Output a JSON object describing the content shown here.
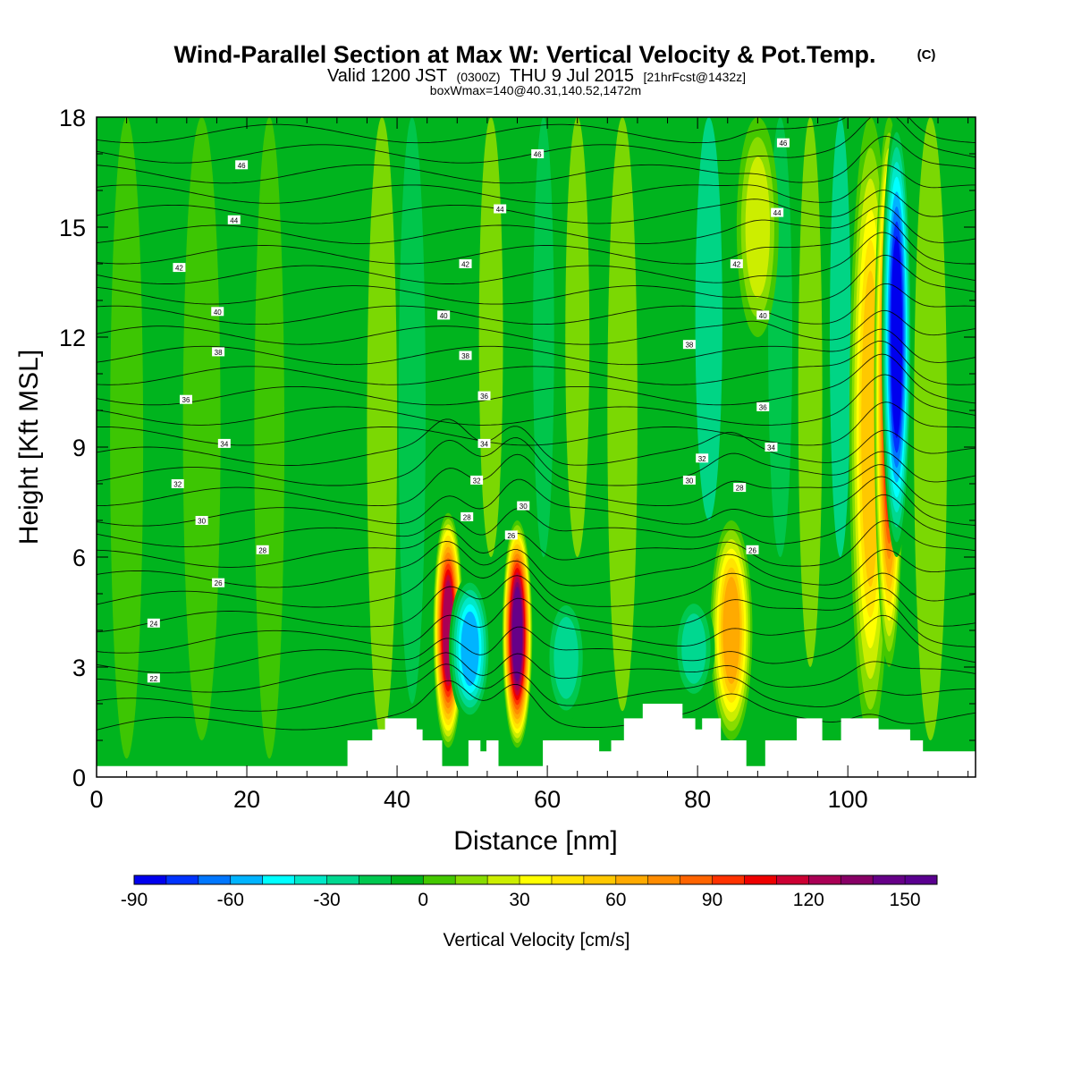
{
  "header": {
    "title": "Wind-Parallel Section at Max W: Vertical Velocity & Pot.Temp.",
    "copyright": "(C)",
    "valid_prefix": "Valid 1200 JST",
    "valid_utc": "(0300Z)",
    "valid_date": "THU 9 Jul 2015",
    "forecast": "[21hrFcst@1432z]",
    "box_info": "boxWmax=140@40.31,140.52,1472m"
  },
  "chart_data": {
    "type": "heatmap",
    "xlabel": "Distance [nm]",
    "ylabel": "Height [Kft MSL]",
    "xlim": [
      0,
      117
    ],
    "ylim": [
      0,
      18
    ],
    "xticks": [
      "0",
      "20",
      "40",
      "60",
      "80",
      "100"
    ],
    "xtick_values": [
      0,
      20,
      40,
      60,
      80,
      100
    ],
    "yticks": [
      "0",
      "3",
      "6",
      "9",
      "12",
      "15",
      "18"
    ],
    "ytick_values": [
      0,
      3,
      6,
      9,
      12,
      15,
      18
    ],
    "colorbar": {
      "label": "Vertical Velocity [cm/s]",
      "min": -90,
      "max": 160,
      "step": 10,
      "tick_labels": [
        "-90",
        "-60",
        "-30",
        "0",
        "30",
        "60",
        "90",
        "120",
        "150"
      ],
      "tick_values": [
        -90,
        -60,
        -30,
        0,
        30,
        60,
        90,
        120,
        150
      ],
      "colors": [
        "#0000ee",
        "#0033ff",
        "#0077ff",
        "#00b4ff",
        "#00ffff",
        "#00e8c8",
        "#00d890",
        "#00c850",
        "#00b41e",
        "#44c800",
        "#88dc00",
        "#ccee00",
        "#ffff00",
        "#ffe400",
        "#ffc800",
        "#ffaa00",
        "#ff8c00",
        "#ff6400",
        "#ff3200",
        "#ee0000",
        "#cc0033",
        "#aa0055",
        "#880066",
        "#660088",
        "#5a0090"
      ]
    },
    "updrafts": [
      {
        "x": 46.8,
        "z_bottom": 0.8,
        "z_top": 7.2,
        "peak_w": 130
      },
      {
        "x": 56.0,
        "z_bottom": 0.8,
        "z_top": 7.0,
        "peak_w": 150
      },
      {
        "x": 84.5,
        "z_bottom": 1.0,
        "z_top": 7.0,
        "peak_w": 70
      },
      {
        "x": 103.0,
        "z_bottom": 1.0,
        "z_top": 18.0,
        "peak_w": 60
      },
      {
        "x": 105.5,
        "z_bottom": 3.0,
        "z_top": 18.0,
        "peak_w": 110
      },
      {
        "x": 88.0,
        "z_bottom": 12.0,
        "z_top": 18.0,
        "peak_w": 30
      }
    ],
    "downdrafts": [
      {
        "x": 49.7,
        "z_bottom": 1.5,
        "z_top": 5.5,
        "peak_w": -60
      },
      {
        "x": 106.5,
        "z_bottom": 6.0,
        "z_top": 18.0,
        "peak_w": -90
      },
      {
        "x": 62.5,
        "z_bottom": 1.5,
        "z_top": 5.0,
        "peak_w": -30
      },
      {
        "x": 79.5,
        "z_bottom": 2.0,
        "z_top": 5.0,
        "peak_w": -30
      }
    ],
    "terrain_kft": [
      {
        "x": 0,
        "z": 0.3
      },
      {
        "x": 33.4,
        "z": 0.3
      },
      {
        "x": 33.4,
        "z": 1.0
      },
      {
        "x": 36.7,
        "z": 1.0
      },
      {
        "x": 36.7,
        "z": 1.3
      },
      {
        "x": 38.4,
        "z": 1.3
      },
      {
        "x": 38.4,
        "z": 1.6
      },
      {
        "x": 42.6,
        "z": 1.6
      },
      {
        "x": 42.6,
        "z": 1.3
      },
      {
        "x": 43.4,
        "z": 1.3
      },
      {
        "x": 43.4,
        "z": 1.0
      },
      {
        "x": 46.0,
        "z": 1.0
      },
      {
        "x": 46.0,
        "z": 0.3
      },
      {
        "x": 49.5,
        "z": 0.3
      },
      {
        "x": 49.5,
        "z": 1.0
      },
      {
        "x": 51.1,
        "z": 1.0
      },
      {
        "x": 51.1,
        "z": 0.7
      },
      {
        "x": 51.9,
        "z": 0.7
      },
      {
        "x": 51.9,
        "z": 1.0
      },
      {
        "x": 53.5,
        "z": 1.0
      },
      {
        "x": 53.5,
        "z": 0.3
      },
      {
        "x": 59.4,
        "z": 0.3
      },
      {
        "x": 59.4,
        "z": 1.0
      },
      {
        "x": 66.9,
        "z": 1.0
      },
      {
        "x": 66.9,
        "z": 0.7
      },
      {
        "x": 68.5,
        "z": 0.7
      },
      {
        "x": 68.5,
        "z": 1.0
      },
      {
        "x": 70.2,
        "z": 1.0
      },
      {
        "x": 70.2,
        "z": 1.6
      },
      {
        "x": 72.7,
        "z": 1.6
      },
      {
        "x": 72.7,
        "z": 2.0
      },
      {
        "x": 78.0,
        "z": 2.0
      },
      {
        "x": 78.0,
        "z": 1.6
      },
      {
        "x": 79.7,
        "z": 1.6
      },
      {
        "x": 79.7,
        "z": 1.3
      },
      {
        "x": 80.6,
        "z": 1.3
      },
      {
        "x": 80.6,
        "z": 1.6
      },
      {
        "x": 83.1,
        "z": 1.6
      },
      {
        "x": 83.1,
        "z": 1.0
      },
      {
        "x": 86.5,
        "z": 1.0
      },
      {
        "x": 86.5,
        "z": 0.3
      },
      {
        "x": 89.0,
        "z": 0.3
      },
      {
        "x": 89.0,
        "z": 1.0
      },
      {
        "x": 93.2,
        "z": 1.0
      },
      {
        "x": 93.2,
        "z": 1.6
      },
      {
        "x": 96.6,
        "z": 1.6
      },
      {
        "x": 96.6,
        "z": 1.0
      },
      {
        "x": 99.1,
        "z": 1.0
      },
      {
        "x": 99.1,
        "z": 1.6
      },
      {
        "x": 104.1,
        "z": 1.6
      },
      {
        "x": 104.1,
        "z": 1.3
      },
      {
        "x": 108.3,
        "z": 1.3
      },
      {
        "x": 108.3,
        "z": 1.0
      },
      {
        "x": 110.0,
        "z": 1.0
      },
      {
        "x": 110.0,
        "z": 0.7
      },
      {
        "x": 117,
        "z": 0.7
      }
    ],
    "isentrope_labels": [
      {
        "text": "46",
        "x": 19.3,
        "z": 16.7
      },
      {
        "text": "46",
        "x": 58.7,
        "z": 17.0
      },
      {
        "text": "46",
        "x": 91.4,
        "z": 17.3
      },
      {
        "text": "44",
        "x": 18.3,
        "z": 15.2
      },
      {
        "text": "44",
        "x": 53.7,
        "z": 15.5
      },
      {
        "text": "44",
        "x": 90.6,
        "z": 15.4
      },
      {
        "text": "42",
        "x": 11.0,
        "z": 13.9
      },
      {
        "text": "42",
        "x": 49.1,
        "z": 14.0
      },
      {
        "text": "42",
        "x": 85.2,
        "z": 14.0
      },
      {
        "text": "40",
        "x": 16.1,
        "z": 12.7
      },
      {
        "text": "40",
        "x": 46.2,
        "z": 12.6
      },
      {
        "text": "40",
        "x": 88.7,
        "z": 12.6
      },
      {
        "text": "38",
        "x": 16.2,
        "z": 11.6
      },
      {
        "text": "38",
        "x": 49.1,
        "z": 11.5
      },
      {
        "text": "38",
        "x": 78.9,
        "z": 11.8
      },
      {
        "text": "36",
        "x": 11.9,
        "z": 10.3
      },
      {
        "text": "36",
        "x": 51.6,
        "z": 10.4
      },
      {
        "text": "36",
        "x": 88.7,
        "z": 10.1
      },
      {
        "text": "34",
        "x": 17.0,
        "z": 9.1
      },
      {
        "text": "34",
        "x": 51.6,
        "z": 9.1
      },
      {
        "text": "34",
        "x": 89.8,
        "z": 9.0
      },
      {
        "text": "32",
        "x": 80.6,
        "z": 8.7
      },
      {
        "text": "32",
        "x": 10.8,
        "z": 8.0
      },
      {
        "text": "32",
        "x": 50.6,
        "z": 8.1
      },
      {
        "text": "30",
        "x": 78.9,
        "z": 8.1
      },
      {
        "text": "30",
        "x": 14.0,
        "z": 7.0
      },
      {
        "text": "30",
        "x": 56.8,
        "z": 7.4
      },
      {
        "text": "28",
        "x": 49.3,
        "z": 7.1
      },
      {
        "text": "28",
        "x": 85.6,
        "z": 7.9
      },
      {
        "text": "28",
        "x": 22.1,
        "z": 6.2
      },
      {
        "text": "26",
        "x": 16.2,
        "z": 5.3
      },
      {
        "text": "26",
        "x": 55.2,
        "z": 6.6
      },
      {
        "text": "26",
        "x": 87.3,
        "z": 6.2
      },
      {
        "text": "24",
        "x": 7.6,
        "z": 4.2
      },
      {
        "text": "22",
        "x": 7.6,
        "z": 2.7
      }
    ]
  }
}
